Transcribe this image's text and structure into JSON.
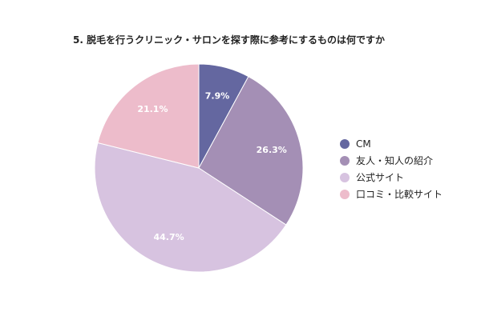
{
  "chart_data": {
    "type": "pie",
    "title": "5. 脱毛を行うクリニック・サロンを探す際に参考にするものは何ですか",
    "categories": [
      "CM",
      "友人・知人の紹介",
      "公式サイト",
      "口コミ・比較サイト"
    ],
    "values": [
      7.9,
      26.3,
      44.7,
      21.1
    ],
    "data_labels": [
      "7.9%",
      "26.3%",
      "44.7%",
      "21.1%"
    ],
    "colors": [
      "#6467a0",
      "#a48fb5",
      "#d7c3e0",
      "#edbccb"
    ],
    "legend_position": "right",
    "start_angle": "12 o'clock",
    "direction": "clockwise"
  }
}
